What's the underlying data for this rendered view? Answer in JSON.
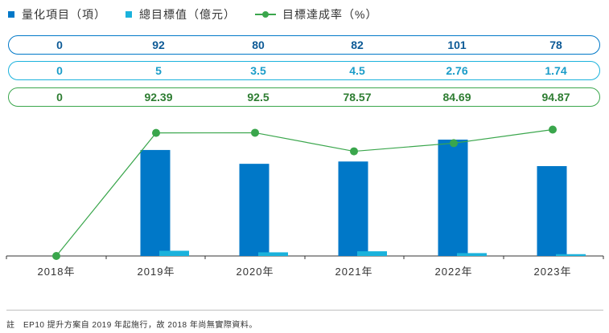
{
  "legend": [
    {
      "label": "量化項目（項）",
      "color": "#0078c8"
    },
    {
      "label": "總目標值（億元）",
      "color": "#1ab2dc"
    },
    {
      "label": "目標達成率（%）",
      "color": "#3aa64c"
    }
  ],
  "table_rows": [
    {
      "color": "#0078c8",
      "values": [
        "0",
        "92",
        "80",
        "82",
        "101",
        "78"
      ]
    },
    {
      "color": "#1ab2dc",
      "values": [
        "0",
        "5",
        "3.5",
        "4.5",
        "2.76",
        "1.74"
      ]
    },
    {
      "color": "#3aa64c",
      "values": [
        "0",
        "92.39",
        "92.5",
        "78.57",
        "84.69",
        "94.87"
      ]
    }
  ],
  "chart_data": {
    "type": "bar",
    "categories": [
      "2018年",
      "2019年",
      "2020年",
      "2021年",
      "2022年",
      "2023年"
    ],
    "series": [
      {
        "name": "量化項目（項）",
        "type": "bar",
        "color": "#0078c8",
        "values": [
          0,
          92,
          80,
          82,
          101,
          78
        ]
      },
      {
        "name": "總目標值（億元）",
        "type": "bar",
        "color": "#1ab2dc",
        "values": [
          0,
          5,
          3.5,
          4.5,
          2.76,
          1.74
        ]
      },
      {
        "name": "目標達成率（%）",
        "type": "line",
        "color": "#3aa64c",
        "values": [
          0,
          92.39,
          92.5,
          78.57,
          84.69,
          94.87
        ]
      }
    ],
    "ylim": [
      0,
      101
    ],
    "grid": false,
    "legend_position": "top-left"
  },
  "footnote": "註　EP10 提升方案自 2019 年起施行，故 2018 年尚無實際資料。"
}
